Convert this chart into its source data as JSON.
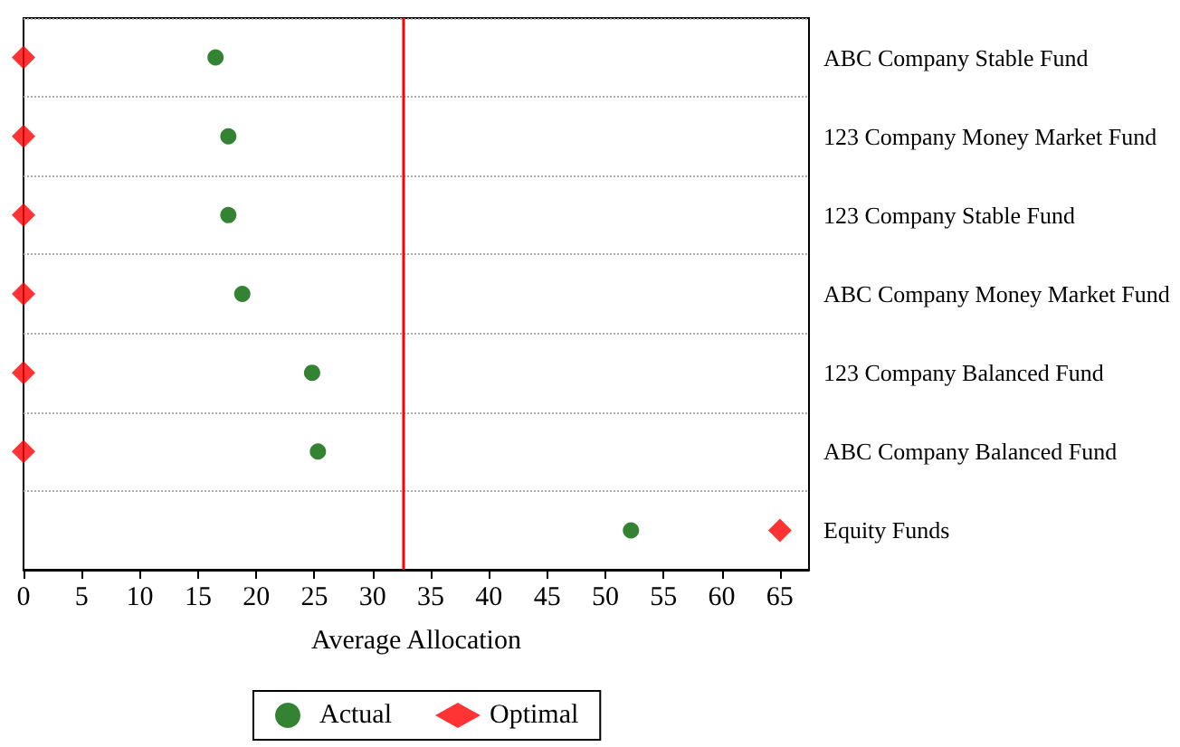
{
  "chart_data": {
    "type": "scatter",
    "orientation": "horizontal",
    "xlabel": "Average Allocation",
    "categories": [
      "ABC Company Stable Fund",
      "123 Company Money Market Fund",
      "123 Company Stable Fund",
      "ABC Company Money Market Fund",
      "123 Company Balanced Fund",
      "ABC Company Balanced Fund",
      "Equity Funds"
    ],
    "series": [
      {
        "name": "Actual",
        "color": "#006400",
        "marker": "circle",
        "values": [
          16.5,
          17.6,
          17.6,
          18.8,
          24.8,
          25.3,
          52.2
        ]
      },
      {
        "name": "Optimal",
        "color": "#ff0000",
        "marker": "diamond",
        "values": [
          0,
          0,
          0,
          0,
          0,
          0,
          65
        ]
      }
    ],
    "xlim": [
      0,
      67.5
    ],
    "xticks": [
      0,
      5,
      10,
      15,
      20,
      25,
      30,
      35,
      40,
      45,
      50,
      55,
      60,
      65
    ],
    "ref_lines": [
      {
        "axis": "x",
        "value": 32.6,
        "color": "#ff0000"
      }
    ],
    "grid": "y",
    "legend": "bottom"
  }
}
